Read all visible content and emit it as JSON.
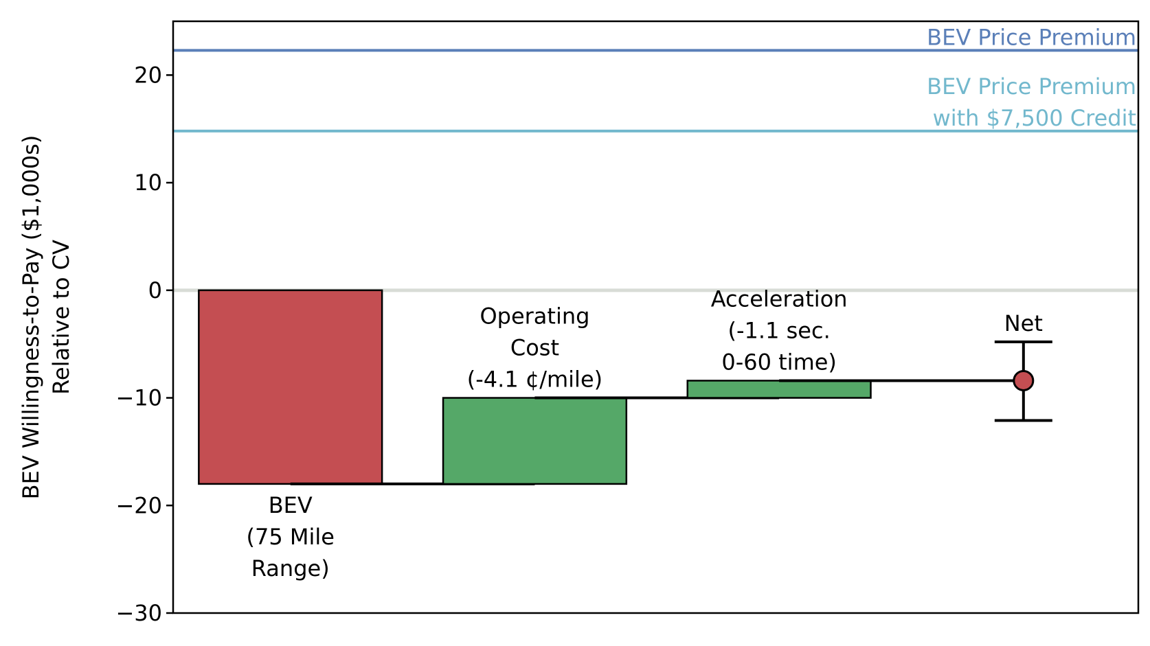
{
  "chart_data": {
    "type": "waterfall",
    "ylabel_lines": [
      "BEV Willingness-to-Pay ($1,000s)",
      "Relative to CV"
    ],
    "ylim": [
      -30,
      25
    ],
    "yticks": [
      {
        "value": 20,
        "label": "20"
      },
      {
        "value": 10,
        "label": "10"
      },
      {
        "value": 0,
        "label": "0"
      },
      {
        "value": -10,
        "label": "−10"
      },
      {
        "value": -20,
        "label": "−20"
      },
      {
        "value": -30,
        "label": "−30"
      }
    ],
    "grid": false,
    "colors": {
      "negative": "#c44e52",
      "positive": "#55a868",
      "premium": "#5a7fb8",
      "premium_credit": "#72b8cd",
      "zero_line": "#d8dcd6",
      "net_point": "#c44e52"
    },
    "bars": [
      {
        "id": "bev",
        "label_lines": [
          "BEV",
          "(75 Mile",
          "Range)"
        ],
        "start": 0,
        "end": -18,
        "color_key": "negative",
        "label_pos": "below"
      },
      {
        "id": "operating-cost",
        "label_lines": [
          "Operating",
          "Cost",
          "(-4.1 ¢/mile)"
        ],
        "start": -18,
        "end": -10,
        "color_key": "positive",
        "label_pos": "above"
      },
      {
        "id": "acceleration",
        "label_lines": [
          "Acceleration",
          "(-1.1 sec.",
          "0-60 time)"
        ],
        "start": -10,
        "end": -8.4,
        "color_key": "positive",
        "label_pos": "above"
      }
    ],
    "net": {
      "label": "Net",
      "value": -8.4,
      "ci_low": -12.1,
      "ci_high": -4.8
    },
    "reference_lines": [
      {
        "id": "bev-price-premium",
        "value": 22.3,
        "label_lines": [
          "BEV Price Premium"
        ],
        "color_key": "premium"
      },
      {
        "id": "bev-price-premium-credit",
        "value": 14.8,
        "label_lines": [
          "BEV Price Premium",
          "with $7,500 Credit"
        ],
        "color_key": "premium_credit"
      }
    ]
  }
}
